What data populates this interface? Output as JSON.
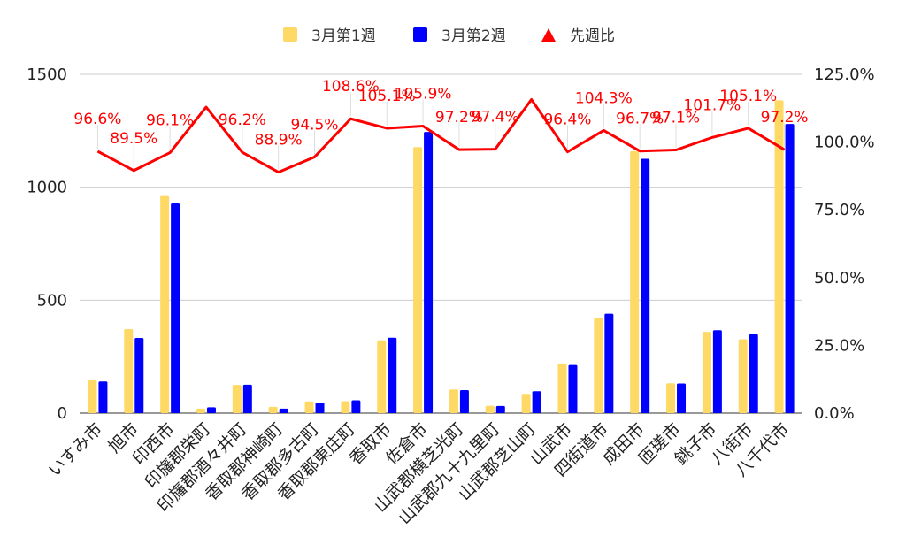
{
  "chart_data": {
    "type": "bar",
    "categories": [
      "いすみ市",
      "旭市",
      "印西市",
      "印旛郡栄町",
      "印旛郡酒々井町",
      "香取郡神崎町",
      "香取郡多古町",
      "香取郡東庄町",
      "香取市",
      "佐倉市",
      "山武郡横芝光町",
      "山武郡九十九里町",
      "山武郡芝山町",
      "山武市",
      "四街道市",
      "成田市",
      "匝瑳市",
      "銚子市",
      "八街市",
      "八千代市"
    ],
    "series": [
      {
        "name": "3月第1週",
        "type": "bar",
        "axis": "left",
        "color": "#ffd966",
        "values": [
          145,
          372,
          965,
          20,
          125,
          28,
          52,
          53,
          322,
          1178,
          105,
          33,
          85,
          220,
          420,
          1160,
          132,
          360,
          327,
          1385
        ]
      },
      {
        "name": "3月第2週",
        "type": "bar",
        "axis": "left",
        "color": "#0000ff",
        "values": [
          140,
          333,
          928,
          26,
          126,
          20,
          47,
          57,
          334,
          1245,
          102,
          32,
          97,
          213,
          440,
          1126,
          131,
          367,
          349,
          1280
        ]
      },
      {
        "name": "先週比",
        "type": "line",
        "axis": "right",
        "color": "#ff0000",
        "values": [
          96.6,
          89.5,
          96.1,
          112.9,
          96.2,
          88.9,
          94.5,
          108.6,
          105.1,
          105.9,
          97.2,
          97.4,
          115.7,
          96.4,
          104.3,
          96.7,
          97.1,
          101.7,
          105.1,
          97.2
        ],
        "labels": [
          "96.6%",
          "89.5%",
          "96.1%",
          "",
          "96.2%",
          "88.9%",
          "94.5%",
          "108.6%",
          "105.1%",
          "105.9%",
          "97.2%",
          "97.4%",
          "",
          "96.4%",
          "104.3%",
          "96.7%",
          "97.1%",
          "101.7%",
          "105.1%",
          "97.2%"
        ]
      }
    ],
    "ylim_left": [
      0,
      1500
    ],
    "yticks_left": [
      "0",
      "500",
      "1000",
      "1500"
    ],
    "ylim_right": [
      0,
      125
    ],
    "yticks_right": [
      "0.0%",
      "25.0%",
      "50.0%",
      "75.0%",
      "100.0%",
      "125.0%"
    ],
    "grid": true,
    "legend_position": "top"
  }
}
